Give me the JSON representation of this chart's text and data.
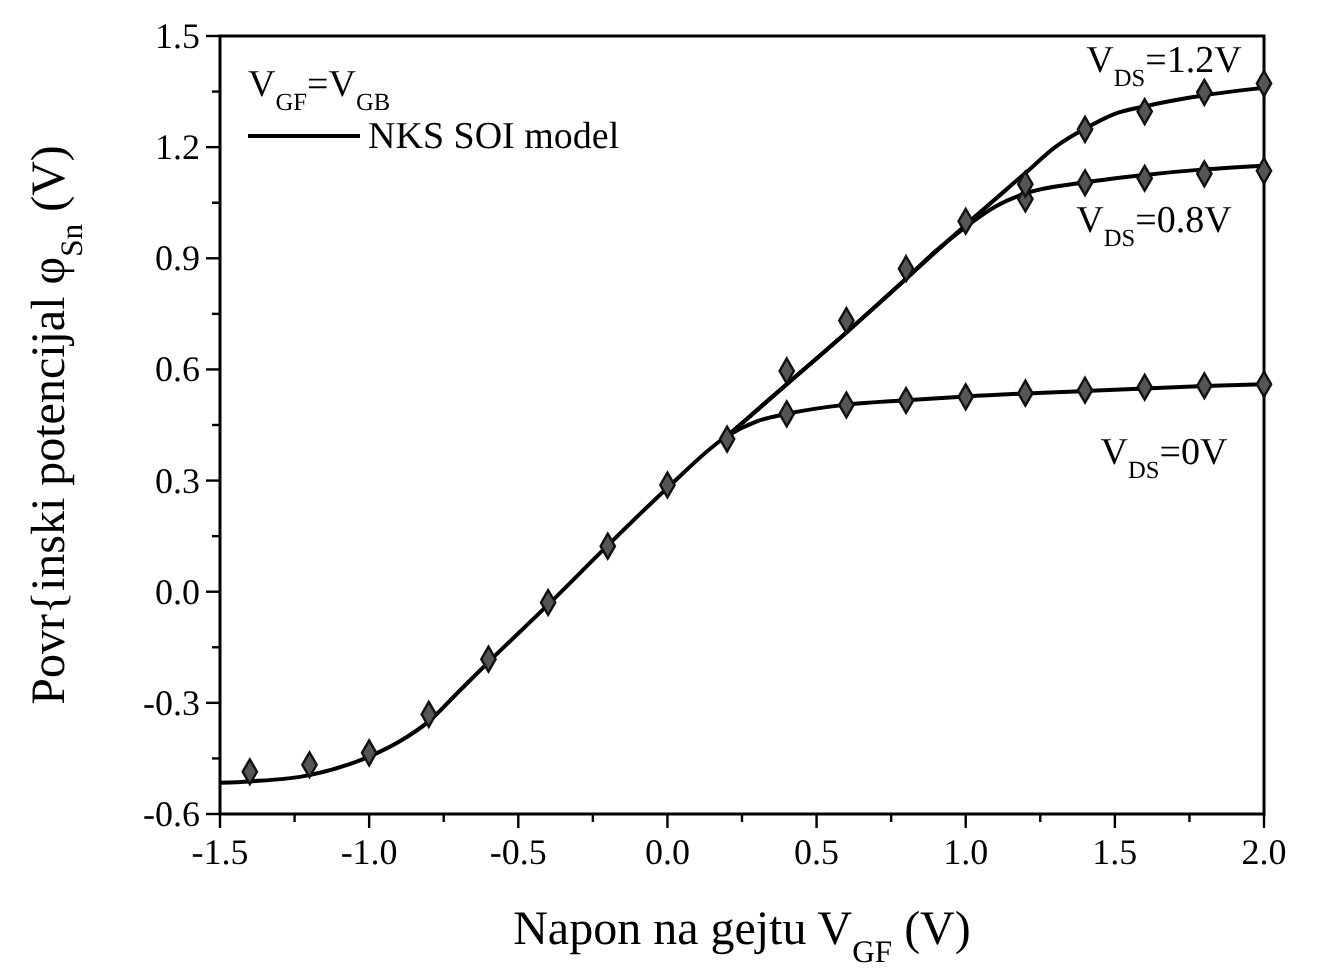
{
  "chart_data": {
    "type": "line",
    "xlabel": "Napon na gejtu V$_{GF}$  (V)",
    "ylabel": "Povr{inski potencijal  φ$_{Sn}$ (V)",
    "legend_title": "V$_{GF}$=V$_{GB}$",
    "legend": "top left",
    "line_style": "solid",
    "xlim": [
      -1.5,
      2.0
    ],
    "ylim": [
      -0.6,
      1.5
    ],
    "xticks": [
      {
        "value": -1.5,
        "label": "-1.5"
      },
      {
        "value": -1.25,
        "label": null
      },
      {
        "value": -1.0,
        "label": "-1.0"
      },
      {
        "value": -0.75,
        "label": null
      },
      {
        "value": -0.5,
        "label": "-0.5"
      },
      {
        "value": -0.25,
        "label": null
      },
      {
        "value": 0,
        "label": "0.0"
      },
      {
        "value": 0.25,
        "label": null
      },
      {
        "value": 0.5,
        "label": "0.5"
      },
      {
        "value": 0.75,
        "label": null
      },
      {
        "value": 1.0,
        "label": "1.0"
      },
      {
        "value": 1.25,
        "label": null
      },
      {
        "value": 1.5,
        "label": "1.5"
      },
      {
        "value": 1.75,
        "label": null
      },
      {
        "value": 2.0,
        "label": "2.0"
      }
    ],
    "yticks": [
      {
        "value": -0.6,
        "label": "-0.6"
      },
      {
        "value": -0.45,
        "label": null
      },
      {
        "value": -0.3,
        "label": "-0.3"
      },
      {
        "value": -0.15,
        "label": null
      },
      {
        "value": 0,
        "label": "0.0"
      },
      {
        "value": 0.15,
        "label": null
      },
      {
        "value": 0.3,
        "label": "0.3"
      },
      {
        "value": 0.45,
        "label": null
      },
      {
        "value": 0.6,
        "label": "0.6"
      },
      {
        "value": 0.75,
        "label": null
      },
      {
        "value": 0.9,
        "label": "0.9"
      },
      {
        "value": 1.05,
        "label": null
      },
      {
        "value": 1.2,
        "label": "1.2"
      },
      {
        "value": 1.35,
        "label": null
      },
      {
        "value": 1.5,
        "label": "1.5"
      }
    ],
    "annotations": [
      "V$_{DS}$=1.2V",
      "V$_{DS}$=0.8V",
      "V$_{DS}$=0V"
    ],
    "series": [
      {
        "name": "NKS SOI model",
        "color": "#000000",
        "marker": "none",
        "x": [
          -1.5,
          -1.4,
          -1.2,
          -1.0,
          -0.9,
          -0.8,
          -0.7,
          -0.6,
          -0.4,
          -0.2,
          0,
          0.2,
          0.3,
          0.4,
          0.6,
          0.8,
          1.0,
          1.4,
          1.8,
          2.0
        ],
        "values": [
          -0.516,
          -0.512,
          -0.495,
          -0.445,
          -0.405,
          -0.35,
          -0.27,
          -0.19,
          -0.035,
          0.125,
          0.28,
          0.42,
          0.46,
          0.48,
          0.505,
          0.517,
          0.527,
          0.542,
          0.555,
          0.56
        ]
      },
      {
        "color": "#000000",
        "marker": "none",
        "x": [
          0.2,
          0.4,
          0.6,
          0.8,
          0.9,
          1.0,
          1.1,
          1.2,
          1.4,
          1.6,
          1.8,
          2.0
        ],
        "values": [
          0.42,
          0.56,
          0.7,
          0.845,
          0.92,
          0.985,
          1.04,
          1.075,
          1.105,
          1.125,
          1.14,
          1.15
        ]
      },
      {
        "color": "#000000",
        "marker": "none",
        "x": [
          0.2,
          0.4,
          0.6,
          0.8,
          1.0,
          1.2,
          1.3,
          1.4,
          1.5,
          1.6,
          1.8,
          2.0
        ],
        "values": [
          0.42,
          0.56,
          0.7,
          0.845,
          0.99,
          1.13,
          1.2,
          1.25,
          1.29,
          1.31,
          1.34,
          1.36
        ]
      },
      {
        "type": "scatter",
        "color": "#555555",
        "marker": "diamond",
        "x": [
          -1.4,
          -1.2,
          -1.0,
          -0.8,
          -0.6,
          -0.4,
          -0.2,
          0,
          0.2,
          0.4,
          0.6,
          0.8,
          1.0,
          1.2,
          1.4,
          1.6,
          1.8,
          2.0
        ],
        "values": [
          -0.486,
          -0.467,
          -0.435,
          -0.331,
          -0.182,
          -0.029,
          0.123,
          0.288,
          0.412,
          0.48,
          0.504,
          0.516,
          0.526,
          0.536,
          0.544,
          0.552,
          0.556,
          0.56
        ]
      },
      {
        "type": "scatter",
        "color": "#555555",
        "marker": "diamond",
        "x": [
          1.2,
          1.4,
          1.6,
          1.8,
          2.0
        ],
        "values": [
          1.06,
          1.104,
          1.116,
          1.128,
          1.136
        ]
      },
      {
        "type": "scatter",
        "color": "#555555",
        "marker": "diamond",
        "x": [
          0.4,
          0.6,
          0.8,
          1.0,
          1.2,
          1.4,
          1.6,
          1.8,
          2.0
        ],
        "values": [
          0.596,
          0.732,
          0.872,
          1.0,
          1.1,
          1.248,
          1.296,
          1.348,
          1.372
        ]
      }
    ]
  }
}
